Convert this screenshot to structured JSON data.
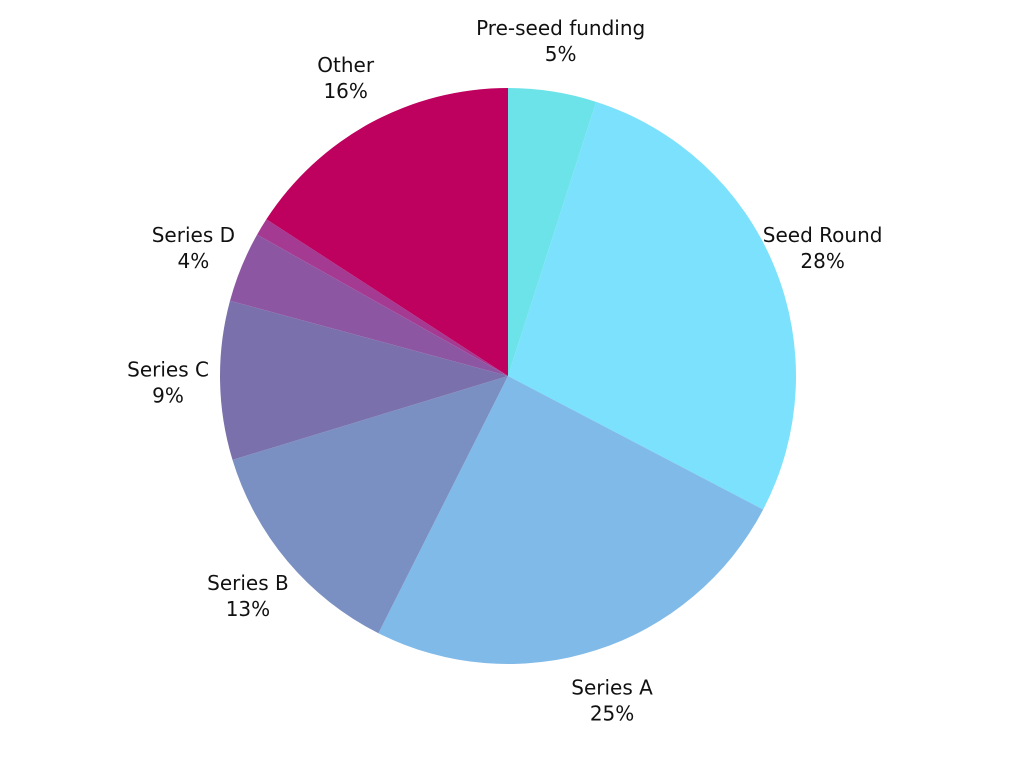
{
  "chart_data": {
    "type": "pie",
    "start": "top",
    "direction": "clockwise",
    "slices": [
      {
        "name": "Pre-seed funding",
        "value": 5,
        "display": "5%",
        "color": "#6BE3E9"
      },
      {
        "name": "Seed Round",
        "value": 28,
        "display": "28%",
        "color": "#7BE1FD"
      },
      {
        "name": "Series A",
        "value": 25,
        "display": "25%",
        "color": "#80BAE8"
      },
      {
        "name": "Series B",
        "value": 13,
        "display": "13%",
        "color": "#7B90C2"
      },
      {
        "name": "Series C",
        "value": 9,
        "display": "9%",
        "color": "#7A71AC"
      },
      {
        "name": "Series D",
        "value": 4,
        "display": "4%",
        "color": "#8D56A2"
      },
      {
        "name": "",
        "value": 1,
        "display": "",
        "color": "#A53A92"
      },
      {
        "name": "Other",
        "value": 16,
        "display": "16%",
        "color": "#BE005E"
      }
    ]
  }
}
